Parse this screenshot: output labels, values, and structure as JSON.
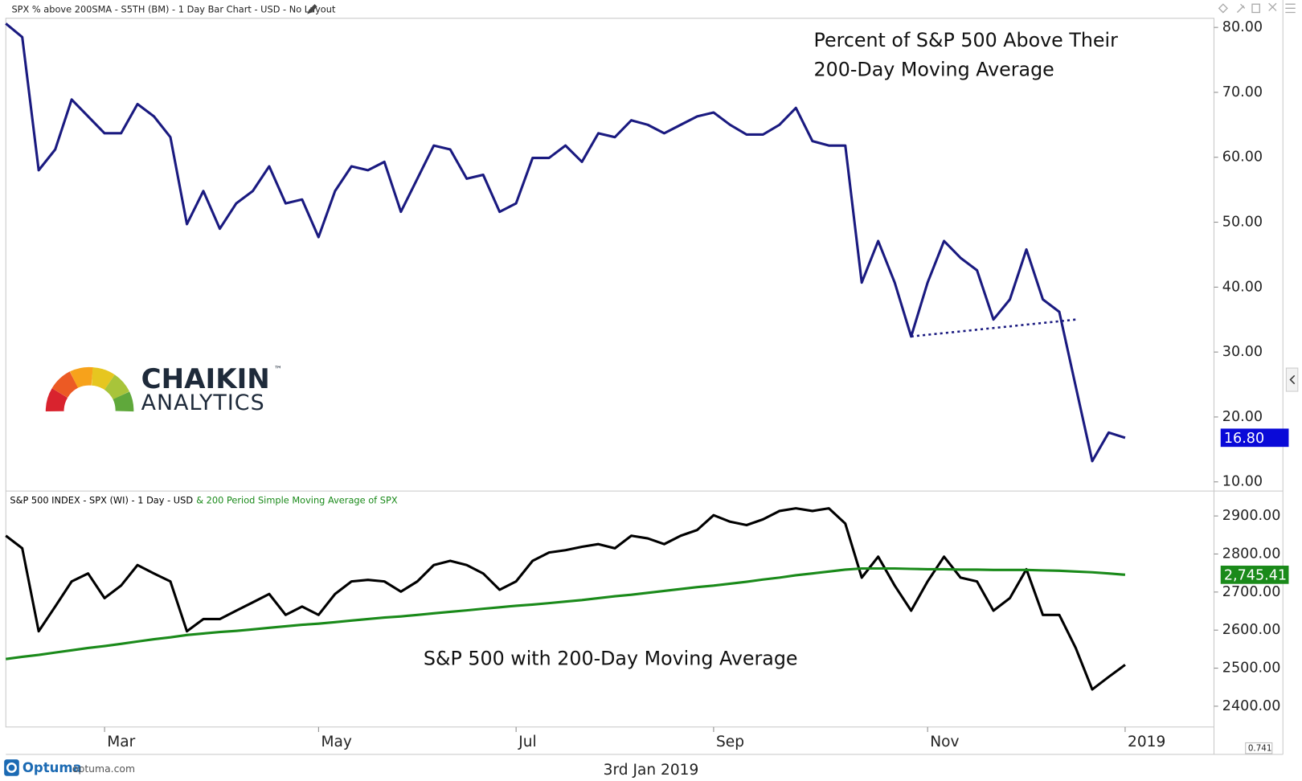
{
  "chart_data": [
    {
      "type": "line",
      "title": "SPX % above 200SMA - S5TH (BM) - 1 Day Bar Chart - USD - No Layout",
      "annotation": [
        "Percent of S&P 500 Above Their",
        "200-Day Moving Average"
      ],
      "ylim": [
        8.72,
        81.41
      ],
      "yticks": [
        {
          "value": 10,
          "label": "10.00"
        },
        {
          "value": 20,
          "label": "20.00"
        },
        {
          "value": 30,
          "label": "30.00"
        },
        {
          "value": 40,
          "label": "40.00"
        },
        {
          "value": 50,
          "label": "50.00"
        },
        {
          "value": 60,
          "label": "60.00"
        },
        {
          "value": 70,
          "label": "70.00"
        },
        {
          "value": 80,
          "label": "80.00"
        }
      ],
      "series": [
        {
          "color": "#1a1a80",
          "values": [
            80.6,
            78.5,
            58,
            61.2,
            68.9,
            66.3,
            63.7,
            63.7,
            68.2,
            66.3,
            63.1,
            49.7,
            54.8,
            49,
            52.9,
            54.8,
            58.6,
            52.9,
            53.5,
            47.7,
            54.8,
            58.6,
            58,
            59.3,
            51.6,
            56.7,
            61.8,
            61.2,
            56.7,
            57.3,
            51.6,
            52.9,
            59.9,
            59.9,
            61.8,
            59.3,
            63.7,
            63.1,
            65.7,
            65,
            63.7,
            65,
            66.3,
            66.9,
            65,
            63.5,
            63.5,
            65,
            67.6,
            62.5,
            61.8,
            61.8,
            40.7,
            47.1,
            40.7,
            32.4,
            40.7,
            47.1,
            44.5,
            42.6,
            35,
            38.1,
            45.8,
            38.1,
            36.2,
            24.7,
            13.2,
            17.6,
            16.8
          ],
          "value_labels": [
            null,
            null,
            null,
            null,
            null,
            null,
            null,
            null,
            null,
            null,
            null,
            null,
            null,
            null,
            null,
            null,
            null,
            null,
            null,
            null,
            null,
            null,
            null,
            null,
            null,
            null,
            null,
            null,
            null,
            null,
            null,
            null,
            null,
            null,
            null,
            null,
            null,
            null,
            null,
            null,
            null,
            null,
            null,
            null,
            null,
            null,
            null,
            null,
            null,
            null,
            null,
            null,
            null,
            null,
            null,
            null,
            null,
            null,
            null,
            null,
            null,
            null,
            null,
            null,
            null,
            null,
            null,
            null,
            "16.80"
          ]
        },
        {
          "color": "#1a1a80",
          "dash": true,
          "values": [
            null,
            null,
            null,
            null,
            null,
            null,
            null,
            null,
            null,
            null,
            null,
            null,
            null,
            null,
            null,
            null,
            null,
            null,
            null,
            null,
            null,
            null,
            null,
            null,
            null,
            null,
            null,
            null,
            null,
            null,
            null,
            null,
            null,
            null,
            null,
            null,
            null,
            null,
            null,
            null,
            null,
            null,
            null,
            null,
            null,
            null,
            null,
            null,
            null,
            null,
            null,
            null,
            null,
            null,
            null,
            32.4,
            32.66,
            32.92,
            33.18,
            33.44,
            33.7,
            33.96,
            34.22,
            34.48,
            34.74,
            35.0,
            null,
            null,
            null
          ]
        }
      ]
    },
    {
      "type": "line",
      "annotation": [
        "S&P 500 with 200-Day Moving Average"
      ],
      "categories": [
        null,
        null,
        null,
        null,
        null,
        null,
        "Mar",
        null,
        null,
        null,
        null,
        null,
        null,
        null,
        null,
        null,
        null,
        null,
        null,
        "May",
        null,
        null,
        null,
        null,
        null,
        null,
        null,
        null,
        null,
        null,
        null,
        "Jul",
        null,
        null,
        null,
        null,
        null,
        null,
        null,
        null,
        null,
        null,
        null,
        "Sep",
        null,
        null,
        null,
        null,
        null,
        null,
        null,
        null,
        null,
        null,
        null,
        null,
        "Nov",
        null,
        null,
        null,
        null,
        null,
        null,
        null,
        null,
        null,
        null,
        null,
        "2019"
      ],
      "ylim": [
        2345.4,
        2963.3
      ],
      "yticks": [
        {
          "value": 2400,
          "label": "2400.00"
        },
        {
          "value": 2500,
          "label": "2500.00"
        },
        {
          "value": 2600,
          "label": "2600.00"
        },
        {
          "value": 2700,
          "label": "2700.00"
        },
        {
          "value": 2800,
          "label": "2800.00"
        },
        {
          "value": 2900,
          "label": "2900.00"
        }
      ],
      "series": [
        {
          "name": "S&P 500 INDEX - SPX (WI) - 1 Day - USD",
          "color": "#000000",
          "values": [
            2848,
            2815,
            2597,
            2662,
            2728,
            2749,
            2684,
            2717,
            2771,
            2749,
            2728,
            2597,
            2629,
            2629,
            2651,
            2673,
            2695,
            2640,
            2662,
            2640,
            2695,
            2728,
            2732,
            2728,
            2701,
            2728,
            2771,
            2782,
            2771,
            2749,
            2706,
            2728,
            2782,
            2804,
            2810,
            2819,
            2826,
            2815,
            2848,
            2841,
            2826,
            2848,
            2863,
            2902,
            2885,
            2876,
            2891,
            2913,
            2920,
            2913,
            2920,
            2880,
            2738,
            2793,
            2717,
            2651,
            2728,
            2793,
            2738,
            2728,
            2651,
            2684,
            2760,
            2640,
            2640,
            2553,
            2444,
            2477,
            2509
          ]
        },
        {
          "name": "& 200 Period Simple Moving Average of SPX",
          "color": "#1a8a1a",
          "values": [
            2524,
            2530,
            2535,
            2541,
            2547,
            2553,
            2558,
            2564,
            2570,
            2576,
            2581,
            2587,
            2591,
            2595,
            2598,
            2602,
            2606,
            2610,
            2614,
            2617,
            2621,
            2625,
            2629,
            2633,
            2636,
            2640,
            2644,
            2648,
            2652,
            2656,
            2660,
            2664,
            2667,
            2671,
            2675,
            2679,
            2684,
            2689,
            2693,
            2698,
            2703,
            2708,
            2713,
            2717,
            2722,
            2727,
            2733,
            2738,
            2744,
            2749,
            2754,
            2759,
            2762,
            2762,
            2762,
            2761,
            2760,
            2760,
            2759,
            2759,
            2758,
            2758,
            2758,
            2757,
            2756,
            2754,
            2752,
            2749,
            2745.41
          ],
          "value_labels": [
            null,
            null,
            null,
            null,
            null,
            null,
            null,
            null,
            null,
            null,
            null,
            null,
            null,
            null,
            null,
            null,
            null,
            null,
            null,
            null,
            null,
            null,
            null,
            null,
            null,
            null,
            null,
            null,
            null,
            null,
            null,
            null,
            null,
            null,
            null,
            null,
            null,
            null,
            null,
            null,
            null,
            null,
            null,
            null,
            null,
            null,
            null,
            null,
            null,
            null,
            null,
            null,
            null,
            null,
            null,
            null,
            null,
            null,
            null,
            null,
            null,
            null,
            null,
            null,
            null,
            null,
            null,
            null,
            "2,745.41"
          ]
        }
      ]
    }
  ],
  "logo": {
    "brand": "CHAIKIN",
    "tm": "™",
    "sub": "ANALYTICS"
  },
  "footer": {
    "brand": "Optuma",
    "site": "optuma.com",
    "date": "3rd Jan 2019",
    "zoom": "0.741"
  }
}
